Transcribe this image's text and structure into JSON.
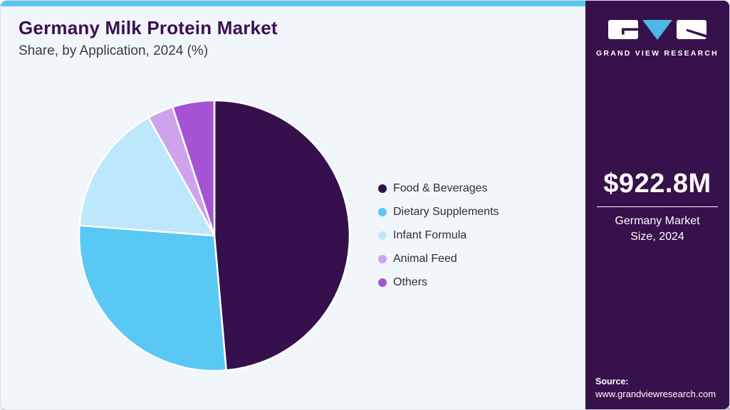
{
  "header": {
    "title": "Germany Milk Protein Market",
    "subtitle": "Share, by Application, 2024 (%)"
  },
  "chart_data": {
    "type": "pie",
    "title": "Germany Milk Protein Market Share, by Application, 2024 (%)",
    "categories": [
      "Food & Beverages",
      "Dietary Supplements",
      "Infant Formula",
      "Animal Feed",
      "Others"
    ],
    "values": [
      48.6,
      27.6,
      15.7,
      3.1,
      5.0
    ],
    "colors": [
      "#36104d",
      "#5ac8f5",
      "#bde7fa",
      "#cfa3ec",
      "#a553d4"
    ],
    "unit": "%",
    "start_angle": "top",
    "direction": "clockwise",
    "slice_border_color": "#ffffff",
    "legend_position": "right",
    "data_labels": "none"
  },
  "sidebar": {
    "logo": {
      "brand": "GRAND VIEW RESEARCH",
      "accent": "#4cb9e8"
    },
    "market_size": {
      "value": "$922.8M",
      "label": "Germany Market Size, 2024"
    },
    "source": {
      "label": "Source:",
      "url": "www.grandviewresearch.com"
    }
  },
  "colors": {
    "top_strip": "#5ec6ee",
    "sidebar_bg": "#36114b",
    "main_bg": "#f1f6fa",
    "title_text": "#3b1053"
  }
}
